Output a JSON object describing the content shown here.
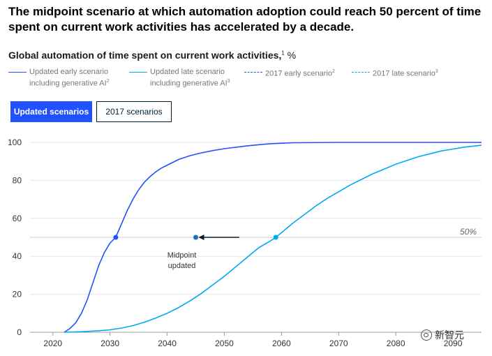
{
  "headline": "The midpoint scenario at which automation adoption could reach 50 percent of time spent on current work activities has accelerated by a decade.",
  "subtitle": {
    "text": "Global automation of time spent on current work activities,",
    "footnote": "1",
    "unit": " %"
  },
  "legend": [
    {
      "line1": "Updated early scenario",
      "line2": "including generative AI",
      "footnote": "2",
      "color": "#2251ff",
      "dashed": false
    },
    {
      "line1": "Updated late scenario",
      "line2": "including generative AI",
      "footnote": "3",
      "color": "#00a9f4",
      "dashed": false
    },
    {
      "line1": "2017 early scenario",
      "line2": "",
      "footnote": "2",
      "color": "#2251ff",
      "dashed": true
    },
    {
      "line1": "2017 late scenario",
      "line2": "",
      "footnote": "3",
      "color": "#00a9f4",
      "dashed": true
    }
  ],
  "buttons": {
    "active": "Updated scenarios",
    "inactive": "2017 scenarios"
  },
  "watermark": "新智元",
  "chart_data": {
    "type": "line",
    "xlim": [
      2016,
      2095
    ],
    "ylim": [
      0,
      100
    ],
    "x_ticks": [
      2020,
      2030,
      2040,
      2050,
      2060,
      2070,
      2080,
      2090
    ],
    "y_ticks": [
      0,
      20,
      40,
      60,
      80,
      100
    ],
    "grid": "horizontal",
    "legend_position": "top",
    "reference_line": {
      "y": 50,
      "label": "50%"
    },
    "annotation": {
      "line1": "Midpoint",
      "line2": "updated",
      "point": {
        "x": 2045,
        "y": 50
      },
      "arrow_from_x": 2052.6
    },
    "series": [
      {
        "name": "Updated early scenario including generative AI",
        "color": "#2251ff",
        "x": [
          2022,
          2023,
          2024,
          2025,
          2026,
          2027,
          2028,
          2029,
          2030,
          2031,
          2032,
          2033,
          2034,
          2035,
          2036,
          2037,
          2038,
          2039,
          2040,
          2042,
          2044,
          2046,
          2048,
          2050,
          2054,
          2058,
          2062,
          2070,
          2080,
          2090,
          2095
        ],
        "y": [
          0,
          2,
          5,
          10,
          17,
          26,
          35,
          42,
          47,
          50,
          57,
          64,
          70,
          75,
          79,
          82,
          84.5,
          86.5,
          88,
          91,
          93,
          94.5,
          95.7,
          96.7,
          98.2,
          99.3,
          99.8,
          100,
          100,
          100,
          100
        ],
        "midpoint": {
          "x": 2031,
          "y": 50
        }
      },
      {
        "name": "Updated late scenario including generative AI",
        "color": "#00a9f4",
        "x": [
          2022,
          2025,
          2028,
          2030,
          2032,
          2034,
          2036,
          2038,
          2040,
          2042,
          2044,
          2046,
          2048,
          2050,
          2052,
          2054,
          2056,
          2058,
          2059,
          2060,
          2062,
          2064,
          2066,
          2068,
          2070,
          2072,
          2074,
          2076,
          2078,
          2080,
          2082,
          2084,
          2086,
          2088,
          2090,
          2092,
          2095
        ],
        "y": [
          0,
          0.3,
          0.8,
          1.3,
          2.2,
          3.5,
          5.3,
          7.5,
          10,
          13,
          16.5,
          20.5,
          25,
          29.5,
          34.5,
          39.5,
          44.5,
          48,
          50,
          52.5,
          57.5,
          62,
          66.5,
          70.5,
          74,
          77.5,
          80.5,
          83.5,
          86,
          88.5,
          90.5,
          92.5,
          94,
          95.5,
          96.5,
          97.5,
          98.5
        ],
        "midpoint": {
          "x": 2059,
          "y": 50
        }
      }
    ]
  }
}
